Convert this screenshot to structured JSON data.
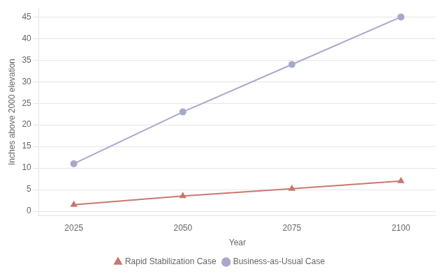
{
  "chart_data": {
    "type": "line",
    "x_label": "Year",
    "y_label": "Inches above 2000 elevation",
    "x": [
      2025,
      2050,
      2075,
      2100
    ],
    "series": [
      {
        "name": "Rapid Stabilization Case",
        "color": "#c8786e",
        "marker": "triangle",
        "line_style": "solid",
        "values": [
          1.5,
          3.5,
          5.2,
          7.0
        ]
      },
      {
        "name": "Business-as-Usual Case",
        "color": "#a8a8cc",
        "marker": "circle",
        "line_style": "solid",
        "values": [
          11.0,
          23.0,
          34.0,
          45.0
        ]
      }
    ],
    "xlim": [
      2017,
      2108
    ],
    "xticks": [
      2025,
      2050,
      2075,
      2100
    ],
    "ylim": [
      -1,
      47
    ],
    "yticks": [
      0,
      5,
      10,
      15,
      20,
      25,
      30,
      35,
      40,
      45
    ],
    "grid": "y",
    "legend": "bottom"
  }
}
